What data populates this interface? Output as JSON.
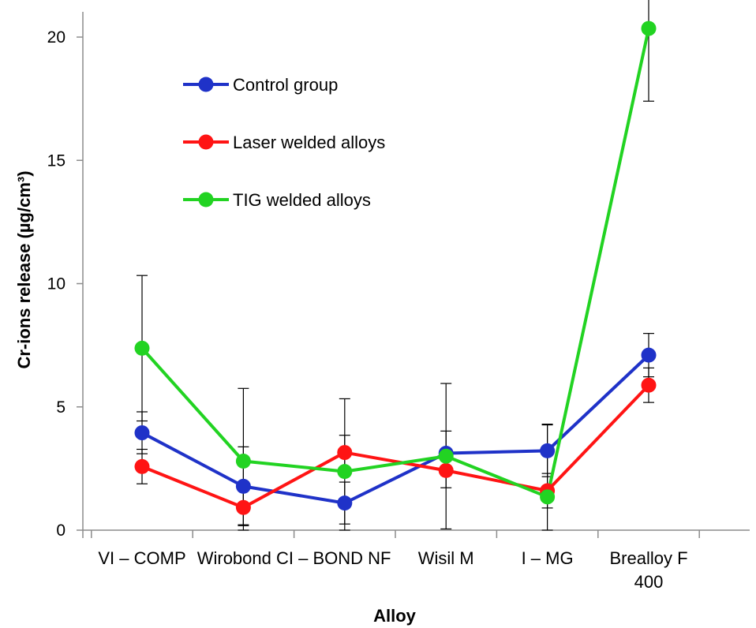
{
  "chart_data": {
    "type": "line",
    "xlabel": "Alloy",
    "ylabel": "Cr-ions release (µg/cm³)",
    "ylim": [
      0,
      21
    ],
    "yticks": [
      "0",
      "5",
      "10",
      "15",
      "20"
    ],
    "categories": [
      [
        "VI – COMP"
      ],
      [
        "Wirobond CI – BOND NF"
      ],
      [
        "Wisil M"
      ],
      [
        "I – MG"
      ],
      [
        "Brealloy F",
        "400"
      ]
    ],
    "category_positions": [
      0,
      1.5,
      3,
      4,
      5
    ],
    "legend_position": "upper-left",
    "grid": false,
    "series": [
      {
        "name": "Control group",
        "color": "#1f32c8",
        "x": [
          0,
          1,
          2,
          3,
          4,
          5
        ],
        "values": [
          3.95,
          1.78,
          1.1,
          3.12,
          3.22,
          7.1
        ],
        "err": [
          0.85,
          1.6,
          0.85,
          0.9,
          1.05,
          0.88
        ]
      },
      {
        "name": "Laser welded alloys",
        "color": "#ff1414",
        "x": [
          0,
          1,
          2,
          3,
          4,
          5
        ],
        "values": [
          2.58,
          0.92,
          3.15,
          2.42,
          1.6,
          5.88
        ],
        "err": [
          0.7,
          0.7,
          0.7,
          0.7,
          0.7,
          0.7
        ]
      },
      {
        "name": "TIG welded alloys",
        "color": "#22d322",
        "x": [
          0,
          1,
          2,
          3,
          4,
          5
        ],
        "values": [
          7.38,
          2.8,
          2.38,
          3.0,
          1.35,
          20.35
        ],
        "err": [
          2.95,
          2.95,
          2.95,
          2.95,
          2.95,
          2.95
        ]
      }
    ]
  }
}
